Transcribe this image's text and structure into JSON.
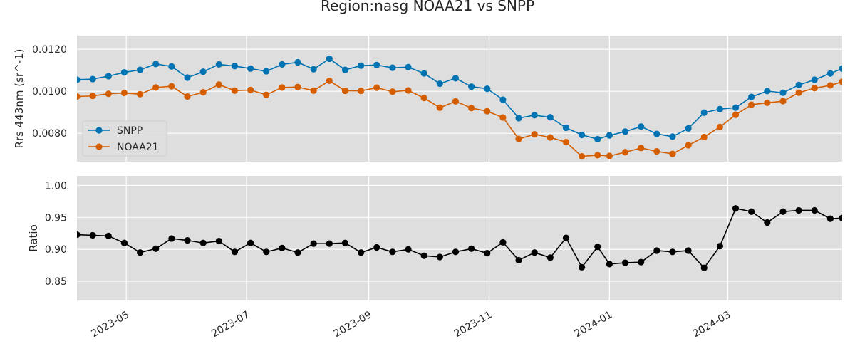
{
  "chart_data": [
    {
      "type": "line",
      "title": "Region:nasg NOAA21 vs SNPP",
      "ylabel": "Rrs 443nm (sr^-1)",
      "ylim": [
        0.00665,
        0.01265
      ],
      "yticks": [
        0.008,
        0.01,
        0.012
      ],
      "ytick_labels": [
        "0.0080",
        "0.0100",
        "0.0120"
      ],
      "xlim": [
        "2023-04-06",
        "2024-04-28"
      ],
      "grid": true,
      "legend_position": "lower-left",
      "x": [
        "2023-04-06",
        "2023-04-14",
        "2023-04-22",
        "2023-04-30",
        "2023-05-08",
        "2023-05-16",
        "2023-05-24",
        "2023-06-01",
        "2023-06-09",
        "2023-06-17",
        "2023-06-25",
        "2023-07-03",
        "2023-07-11",
        "2023-07-19",
        "2023-07-27",
        "2023-08-04",
        "2023-08-12",
        "2023-08-20",
        "2023-08-28",
        "2023-09-05",
        "2023-09-13",
        "2023-09-21",
        "2023-09-29",
        "2023-10-07",
        "2023-10-15",
        "2023-10-23",
        "2023-10-31",
        "2023-11-08",
        "2023-11-16",
        "2023-11-24",
        "2023-12-02",
        "2023-12-10",
        "2023-12-18",
        "2023-12-26",
        "2024-01-01",
        "2024-01-09",
        "2024-01-17",
        "2024-01-25",
        "2024-02-02",
        "2024-02-10",
        "2024-02-18",
        "2024-02-26",
        "2024-03-05",
        "2024-03-13",
        "2024-03-21",
        "2024-03-29",
        "2024-04-06",
        "2024-04-14",
        "2024-04-22",
        "2024-04-28"
      ],
      "series": [
        {
          "name": "SNPP",
          "color": "#0173b2",
          "values": [
            0.01055,
            0.01058,
            0.01072,
            0.0109,
            0.01102,
            0.0113,
            0.01118,
            0.01065,
            0.01093,
            0.01128,
            0.0112,
            0.01108,
            0.01095,
            0.01128,
            0.01138,
            0.01105,
            0.01155,
            0.01102,
            0.01122,
            0.01125,
            0.01112,
            0.01115,
            0.01085,
            0.01036,
            0.01062,
            0.01022,
            0.01012,
            0.0096,
            0.00872,
            0.00886,
            0.00876,
            0.00826,
            0.00792,
            0.00772,
            0.0079,
            0.00808,
            0.00832,
            0.00797,
            0.00784,
            0.00823,
            0.00898,
            0.00915,
            0.00922,
            0.00973,
            0.01001,
            0.00993,
            0.0103,
            0.01055,
            0.01085,
            0.01108
          ]
        },
        {
          "name": "NOAA21",
          "color": "#d55e00",
          "values": [
            0.00975,
            0.00978,
            0.00988,
            0.00992,
            0.00986,
            0.01018,
            0.01024,
            0.00975,
            0.00995,
            0.01032,
            0.01003,
            0.01006,
            0.00983,
            0.01018,
            0.0102,
            0.01003,
            0.0105,
            0.01002,
            0.01002,
            0.01017,
            0.00998,
            0.01004,
            0.00968,
            0.00922,
            0.00952,
            0.0092,
            0.00905,
            0.00875,
            0.00773,
            0.00795,
            0.0078,
            0.00758,
            0.0069,
            0.00696,
            0.00692,
            0.0071,
            0.0073,
            0.00714,
            0.00702,
            0.00743,
            0.00782,
            0.0083,
            0.00888,
            0.00936,
            0.00945,
            0.00953,
            0.00993,
            0.01015,
            0.01028,
            0.01045
          ]
        }
      ]
    },
    {
      "type": "line",
      "ylabel": "Ratio",
      "ylim": [
        0.82,
        1.015
      ],
      "yticks": [
        0.85,
        0.9,
        0.95,
        1.0
      ],
      "ytick_labels": [
        "0.85",
        "0.90",
        "0.95",
        "1.00"
      ],
      "xlim": [
        "2023-04-06",
        "2024-04-28"
      ],
      "xticks": [
        "2023-05-01",
        "2023-07-01",
        "2023-09-01",
        "2023-11-01",
        "2024-01-01",
        "2024-03-01"
      ],
      "xtick_labels": [
        "2023-05",
        "2023-07",
        "2023-09",
        "2023-11",
        "2024-01",
        "2024-03"
      ],
      "grid": true,
      "x": [
        "2023-04-06",
        "2023-04-14",
        "2023-04-22",
        "2023-04-30",
        "2023-05-08",
        "2023-05-16",
        "2023-05-24",
        "2023-06-01",
        "2023-06-09",
        "2023-06-17",
        "2023-06-25",
        "2023-07-03",
        "2023-07-11",
        "2023-07-19",
        "2023-07-27",
        "2023-08-04",
        "2023-08-12",
        "2023-08-20",
        "2023-08-28",
        "2023-09-05",
        "2023-09-13",
        "2023-09-21",
        "2023-09-29",
        "2023-10-07",
        "2023-10-15",
        "2023-10-23",
        "2023-10-31",
        "2023-11-08",
        "2023-11-16",
        "2023-11-24",
        "2023-12-02",
        "2023-12-10",
        "2023-12-18",
        "2023-12-26",
        "2024-01-01",
        "2024-01-09",
        "2024-01-17",
        "2024-01-25",
        "2024-02-02",
        "2024-02-10",
        "2024-02-18",
        "2024-02-26",
        "2024-03-05",
        "2024-03-13",
        "2024-03-21",
        "2024-03-29",
        "2024-04-06",
        "2024-04-14",
        "2024-04-22",
        "2024-04-28"
      ],
      "series": [
        {
          "color": "#000000",
          "values": [
            0.923,
            0.922,
            0.921,
            0.91,
            0.895,
            0.901,
            0.917,
            0.914,
            0.91,
            0.913,
            0.896,
            0.91,
            0.896,
            0.902,
            0.895,
            0.909,
            0.909,
            0.91,
            0.895,
            0.903,
            0.896,
            0.9,
            0.89,
            0.888,
            0.896,
            0.901,
            0.894,
            0.911,
            0.883,
            0.895,
            0.887,
            0.918,
            0.872,
            0.904,
            0.877,
            0.879,
            0.88,
            0.898,
            0.896,
            0.898,
            0.871,
            0.905,
            0.964,
            0.959,
            0.942,
            0.959,
            0.961,
            0.961,
            0.948,
            0.949
          ]
        }
      ]
    }
  ]
}
